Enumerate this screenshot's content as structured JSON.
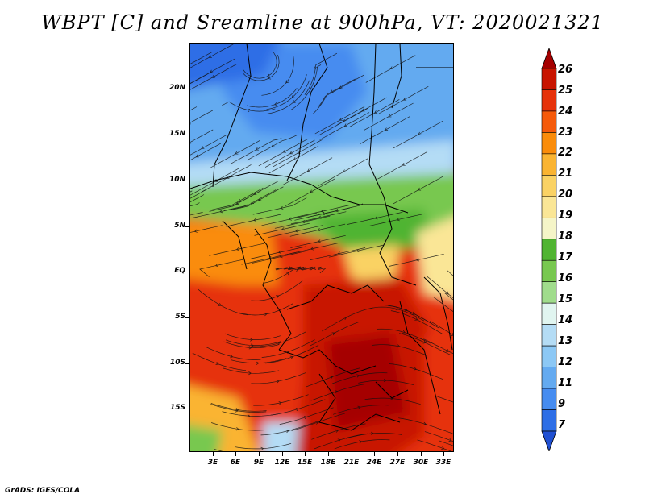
{
  "title": "WBPT [C] and Sreamline at 900hPa, VT: 2020021321",
  "credit": "GrADS: IGES/COLA",
  "map": {
    "lat_labels": [
      "20N",
      "15N",
      "10N",
      "5N",
      "EQ",
      "5S",
      "10S",
      "15S"
    ],
    "lat_values": [
      20,
      15,
      10,
      5,
      0,
      -5,
      -10,
      -15
    ],
    "lon_labels": [
      "3E",
      "6E",
      "9E",
      "12E",
      "15E",
      "18E",
      "21E",
      "24E",
      "27E",
      "30E",
      "33E"
    ],
    "lon_values": [
      3,
      6,
      9,
      12,
      15,
      18,
      21,
      24,
      27,
      30,
      33
    ],
    "lat_range": [
      -20,
      24.5
    ],
    "lon_range": [
      0.5,
      34.5
    ]
  },
  "colorbar": {
    "labels": [
      "26",
      "25",
      "24",
      "23",
      "22",
      "21",
      "20",
      "19",
      "18",
      "17",
      "16",
      "15",
      "14",
      "13",
      "12",
      "11",
      "9",
      "7"
    ],
    "colors": [
      "#a50000",
      "#c81400",
      "#e6320a",
      "#f55a0a",
      "#fa8c0a",
      "#fab432",
      "#fad264",
      "#fae696",
      "#f5f5c8",
      "#50b432",
      "#78c850",
      "#a0dc8c",
      "#e1f5f0",
      "#b4dcf5",
      "#8cc8f5",
      "#64aaf0",
      "#468cf0",
      "#2d6ee6",
      "#2050d2"
    ]
  }
}
